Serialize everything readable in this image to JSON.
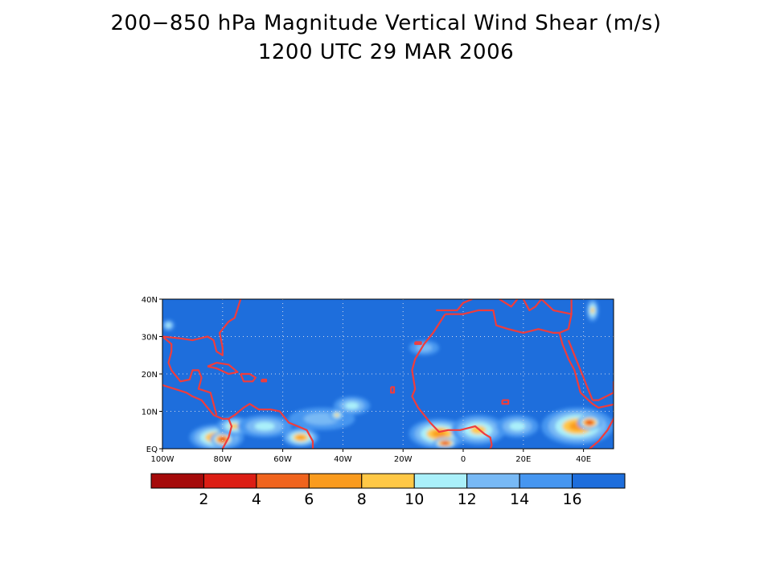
{
  "title": "200−850 hPa Magnitude Vertical Wind Shear (m/s)",
  "subtitle": "1200 UTC 29 MAR 2006",
  "chart_data": {
    "type": "heatmap",
    "field": "vertical wind shear magnitude",
    "units": "m/s",
    "lon_range": [
      -100,
      50
    ],
    "lat_range": [
      0,
      40
    ],
    "grid": true,
    "x_ticks": [
      {
        "lon": -100,
        "label": "100W"
      },
      {
        "lon": -80,
        "label": "80W"
      },
      {
        "lon": -60,
        "label": "60W"
      },
      {
        "lon": -40,
        "label": "40W"
      },
      {
        "lon": -20,
        "label": "20W"
      },
      {
        "lon": 0,
        "label": "0"
      },
      {
        "lon": 20,
        "label": "20E"
      },
      {
        "lon": 40,
        "label": "40E"
      }
    ],
    "y_ticks": [
      {
        "lat": 0,
        "label": "EQ"
      },
      {
        "lat": 10,
        "label": "10N"
      },
      {
        "lat": 20,
        "label": "20N"
      },
      {
        "lat": 30,
        "label": "30N"
      },
      {
        "lat": 40,
        "label": "40N"
      }
    ],
    "colorbar": {
      "colors": [
        "#a50a0a",
        "#dc1e14",
        "#f0641e",
        "#fa9b1e",
        "#ffc846",
        "#aaf0fa",
        "#78b9f5",
        "#4696f0",
        "#1e6edc"
      ],
      "labels": [
        "2",
        "4",
        "6",
        "8",
        "10",
        "12",
        "14",
        "16"
      ]
    },
    "background_level_color": "#1e6edc",
    "coastline_color": "#f03c3c",
    "low_shear_regions": [
      {
        "lon": -82,
        "lat": 3,
        "rx": 9,
        "ry": 3.5,
        "level": 3
      },
      {
        "lon": -80,
        "lat": 2.5,
        "rx": 4,
        "ry": 2,
        "level": 1
      },
      {
        "lon": -76,
        "lat": 6,
        "rx": 6,
        "ry": 2.5,
        "level": 4
      },
      {
        "lon": -66,
        "lat": 6,
        "rx": 9,
        "ry": 3,
        "level": 5
      },
      {
        "lon": -54,
        "lat": 3,
        "rx": 6,
        "ry": 2.5,
        "level": 3
      },
      {
        "lon": -47,
        "lat": 8,
        "rx": 11,
        "ry": 3,
        "level": 6
      },
      {
        "lon": -37,
        "lat": 11.5,
        "rx": 6,
        "ry": 2.5,
        "level": 5
      },
      {
        "lon": -42,
        "lat": 9,
        "rx": 2.5,
        "ry": 1.5,
        "level": 4
      },
      {
        "lon": -8,
        "lat": 4,
        "rx": 10,
        "ry": 4,
        "level": 3
      },
      {
        "lon": -6,
        "lat": 1.5,
        "rx": 4,
        "ry": 1.5,
        "level": 1
      },
      {
        "lon": 5,
        "lat": 5,
        "rx": 9,
        "ry": 4,
        "level": 4
      },
      {
        "lon": 18,
        "lat": 6,
        "rx": 7,
        "ry": 3,
        "level": 5
      },
      {
        "lon": 38,
        "lat": 6,
        "rx": 12,
        "ry": 5,
        "level": 3
      },
      {
        "lon": 42,
        "lat": 7,
        "rx": 4,
        "ry": 2,
        "level": 1
      },
      {
        "lon": -13,
        "lat": 27,
        "rx": 5,
        "ry": 2,
        "level": 6
      },
      {
        "lon": 43,
        "lat": 37,
        "rx": 2,
        "ry": 3,
        "level": 4
      },
      {
        "lon": -98,
        "lat": 33,
        "rx": 2,
        "ry": 1.5,
        "level": 5
      }
    ],
    "coastlines": [
      {
        "name": "north-america",
        "points": [
          [
            -100,
            17
          ],
          [
            -96,
            16
          ],
          [
            -92,
            15
          ],
          [
            -90,
            14
          ],
          [
            -87,
            13
          ],
          [
            -85,
            11
          ],
          [
            -83,
            9
          ],
          [
            -80,
            8
          ],
          [
            -78,
            8
          ]
        ]
      },
      {
        "name": "gulf-coast",
        "points": [
          [
            -100,
            30
          ],
          [
            -97,
            28
          ],
          [
            -97,
            26
          ],
          [
            -98,
            23
          ],
          [
            -97,
            21
          ],
          [
            -94,
            18
          ],
          [
            -91,
            18.5
          ],
          [
            -90,
            21
          ],
          [
            -88,
            21
          ],
          [
            -87,
            19
          ],
          [
            -88,
            16
          ],
          [
            -84,
            15
          ],
          [
            -83,
            12
          ],
          [
            -82,
            9
          ]
        ]
      },
      {
        "name": "us-south",
        "points": [
          [
            -100,
            30
          ],
          [
            -94,
            29.5
          ],
          [
            -90,
            29
          ],
          [
            -85,
            30
          ],
          [
            -83,
            29
          ],
          [
            -82,
            26
          ],
          [
            -80,
            25
          ],
          [
            -80,
            27
          ],
          [
            -81,
            31
          ],
          [
            -78,
            34
          ],
          [
            -76,
            35
          ],
          [
            -74,
            40
          ]
        ]
      },
      {
        "name": "south-america-north",
        "points": [
          [
            -78,
            8
          ],
          [
            -76,
            9
          ],
          [
            -73,
            11
          ],
          [
            -71,
            12
          ],
          [
            -68,
            10.5
          ],
          [
            -64,
            10.5
          ],
          [
            -61,
            10
          ],
          [
            -58,
            7
          ],
          [
            -55,
            6
          ],
          [
            -52,
            5
          ],
          [
            -50,
            2
          ],
          [
            -50,
            0
          ]
        ]
      },
      {
        "name": "south-america-west",
        "points": [
          [
            -78,
            8
          ],
          [
            -77,
            6
          ],
          [
            -78,
            3
          ],
          [
            -80,
            0
          ]
        ]
      },
      {
        "name": "cuba",
        "points": [
          [
            -85,
            22
          ],
          [
            -82,
            23
          ],
          [
            -78,
            22.5
          ],
          [
            -75,
            20.5
          ],
          [
            -78,
            20
          ],
          [
            -82,
            21.5
          ],
          [
            -85,
            22
          ]
        ]
      },
      {
        "name": "hispaniola",
        "points": [
          [
            -74,
            20
          ],
          [
            -71,
            20
          ],
          [
            -69,
            19
          ],
          [
            -70,
            18
          ],
          [
            -73,
            18
          ],
          [
            -74,
            20
          ]
        ]
      },
      {
        "name": "puerto-rico",
        "points": [
          [
            -67,
            18.5
          ],
          [
            -65.5,
            18.5
          ],
          [
            -65.5,
            18
          ],
          [
            -67,
            18
          ],
          [
            -67,
            18.5
          ]
        ]
      },
      {
        "name": "africa-west",
        "points": [
          [
            -6,
            36
          ],
          [
            -10,
            31
          ],
          [
            -13,
            28
          ],
          [
            -16,
            24
          ],
          [
            -17,
            21
          ],
          [
            -16,
            16
          ],
          [
            -17,
            14
          ],
          [
            -15,
            11
          ],
          [
            -13,
            9
          ],
          [
            -11,
            7
          ],
          [
            -8,
            4.5
          ],
          [
            -5,
            5
          ],
          [
            -1,
            5
          ],
          [
            4,
            6
          ],
          [
            7,
            4
          ],
          [
            9,
            3
          ],
          [
            9.5,
            1
          ],
          [
            9,
            0
          ]
        ]
      },
      {
        "name": "med-north-africa",
        "points": [
          [
            -6,
            36
          ],
          [
            0,
            36
          ],
          [
            5,
            37
          ],
          [
            10,
            37
          ],
          [
            11,
            33
          ],
          [
            15,
            32
          ],
          [
            20,
            31
          ],
          [
            25,
            32
          ],
          [
            30,
            31
          ],
          [
            32,
            31
          ],
          [
            35,
            32
          ],
          [
            36,
            36
          ],
          [
            36,
            40
          ]
        ]
      },
      {
        "name": "red-sea-west",
        "points": [
          [
            32,
            31
          ],
          [
            33,
            28
          ],
          [
            35,
            24
          ],
          [
            37,
            21
          ],
          [
            38,
            18
          ],
          [
            39,
            15
          ],
          [
            43,
            12
          ],
          [
            45,
            11
          ],
          [
            51,
            12
          ]
        ]
      },
      {
        "name": "red-sea-east",
        "points": [
          [
            35,
            29
          ],
          [
            37,
            25
          ],
          [
            39,
            21
          ],
          [
            41,
            17
          ],
          [
            43,
            13
          ]
        ]
      },
      {
        "name": "arabia",
        "points": [
          [
            43,
            13
          ],
          [
            45,
            13
          ],
          [
            50,
            15
          ],
          [
            50,
            18
          ]
        ]
      },
      {
        "name": "horn-east",
        "points": [
          [
            51,
            12
          ],
          [
            50,
            8
          ],
          [
            48,
            5
          ],
          [
            45,
            2
          ],
          [
            42,
            0
          ]
        ]
      },
      {
        "name": "iberia-italy",
        "points": [
          [
            -9,
            37
          ],
          [
            -6,
            37
          ],
          [
            -2,
            37
          ],
          [
            0,
            39
          ],
          [
            3,
            40
          ]
        ]
      },
      {
        "name": "italy",
        "points": [
          [
            12,
            40
          ],
          [
            16,
            38
          ],
          [
            18,
            40
          ]
        ]
      },
      {
        "name": "greece-turkey",
        "points": [
          [
            20,
            40
          ],
          [
            22,
            37
          ],
          [
            24,
            38
          ],
          [
            26,
            40
          ],
          [
            30,
            37
          ],
          [
            36,
            36
          ]
        ]
      },
      {
        "name": "canaries",
        "points": [
          [
            -16,
            28.5
          ],
          [
            -14,
            28.5
          ],
          [
            -14,
            28
          ],
          [
            -16,
            28
          ],
          [
            -16,
            28.5
          ]
        ]
      },
      {
        "name": "cape-verde",
        "points": [
          [
            -24,
            16.5
          ],
          [
            -23,
            16.5
          ],
          [
            -23,
            15
          ],
          [
            -24,
            15
          ],
          [
            -24,
            16.5
          ]
        ]
      },
      {
        "name": "lake-victoria-chad",
        "points": [
          [
            13,
            13
          ],
          [
            15,
            13
          ],
          [
            15,
            12
          ],
          [
            13,
            12
          ],
          [
            13,
            13
          ]
        ]
      }
    ]
  }
}
